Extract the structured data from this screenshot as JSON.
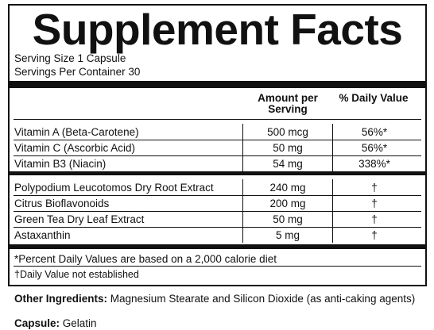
{
  "title": "Supplement Facts",
  "serving": [
    "Serving Size 1 Capsule",
    "Servings Per Container 30"
  ],
  "header": {
    "amount": "Amount per Serving",
    "dv": "% Daily Value"
  },
  "groups": [
    [
      {
        "name": "Vitamin A (Beta-Carotene)",
        "amount": "500 mcg",
        "dv": "56%*"
      },
      {
        "name": "Vitamin C (Ascorbic Acid)",
        "amount": "50 mg",
        "dv": "56%*"
      },
      {
        "name": "Vitamin B3 (Niacin)",
        "amount": "54 mg",
        "dv": "338%*"
      }
    ],
    [
      {
        "name": "Polypodium Leucotomos Dry Root Extract",
        "amount": "240 mg",
        "dv": "†"
      },
      {
        "name": "Citrus Bioflavonoids",
        "amount": "200 mg",
        "dv": "†"
      },
      {
        "name": "Green Tea Dry Leaf Extract",
        "amount": "50 mg",
        "dv": "†"
      },
      {
        "name": "Astaxanthin",
        "amount": "5 mg",
        "dv": "†"
      }
    ]
  ],
  "footnotes": [
    "*Percent Daily Values are based on a 2,000 calorie diet",
    "†Daily Value not established"
  ],
  "other": {
    "label": "Other Ingredients:",
    "text": "Magnesium Stearate and Silicon Dioxide (as anti-caking agents)"
  },
  "capsule": {
    "label": "Capsule:",
    "text": "Gelatin"
  }
}
